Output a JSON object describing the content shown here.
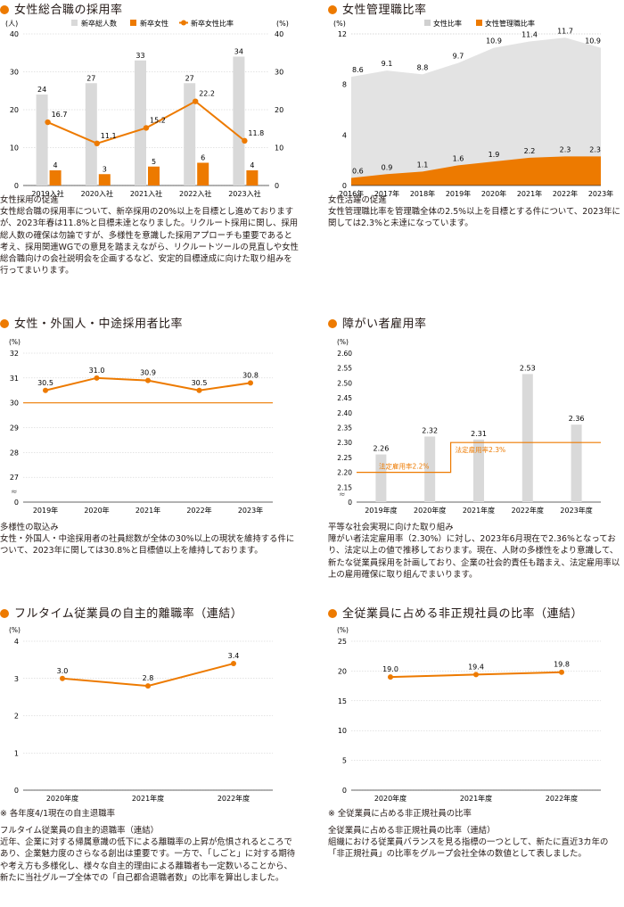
{
  "colors": {
    "accent": "#ed7a00",
    "gray_bar": "#d9d9d9",
    "axis": "#333333"
  },
  "panels": [
    {
      "id": "p1",
      "title": "女性総合職の採用率",
      "chart_data": {
        "type": "bar+line",
        "categories": [
          "2019入社",
          "2020入社",
          "2021入社",
          "2022入社",
          "2023入社"
        ],
        "left_unit": "(人)",
        "right_unit": "(%)",
        "ylim": [
          0,
          40
        ],
        "y_ticks": [
          0,
          10,
          20,
          30,
          40
        ],
        "series": [
          {
            "name": "新卒総人数",
            "type": "bar",
            "color": "#d9d9d9",
            "values": [
              24,
              27,
              33,
              27,
              34
            ]
          },
          {
            "name": "新卒女性",
            "type": "bar",
            "color": "#ed7a00",
            "values": [
              4,
              3,
              5,
              6,
              4
            ]
          },
          {
            "name": "新卒女性比率",
            "type": "line",
            "color": "#ed7a00",
            "values": [
              16.7,
              11.1,
              15.2,
              22.2,
              11.8
            ]
          }
        ]
      },
      "desc": "女性採用の促進\n女性総合職の採用率について、新卒採用の20%以上を目標とし進めておりますが、2023年春は11.8%と目標未達となりました。リクルート採用に関し、採用総人数の確保は勿論ですが、多様性を意識した採用アプローチも重要であると考え、採用関連WGでの意見を踏まえながら、リクルートツールの見直しや女性総合職向けの会社説明会を企画するなど、安定的目標達成に向けた取り組みを行ってまいります。"
    },
    {
      "id": "p2",
      "title": "女性管理職比率",
      "chart_data": {
        "type": "area",
        "categories": [
          "2016年",
          "2017年",
          "2018年",
          "2019年",
          "2020年",
          "2021年",
          "2022年",
          "2023年"
        ],
        "unit": "(%)",
        "ylim": [
          0,
          12
        ],
        "y_ticks": [
          0,
          4,
          8,
          12
        ],
        "series": [
          {
            "name": "女性比率",
            "color": "#e3e3e3",
            "values": [
              8.6,
              9.1,
              8.8,
              9.7,
              10.9,
              11.4,
              11.7,
              10.9
            ]
          },
          {
            "name": "女性管理職比率",
            "color": "#ed7a00",
            "values": [
              0.6,
              0.9,
              1.1,
              1.6,
              1.9,
              2.2,
              2.3,
              2.3
            ]
          }
        ]
      },
      "desc": "女性活躍の促進\n女性管理職比率を管理職全体の2.5%以上を目標とする件について、2023年に関しては2.3%と未達になっています。"
    },
    {
      "id": "p3",
      "title": "女性・外国人・中途採用者比率",
      "chart_data": {
        "type": "line",
        "categories": [
          "2019年",
          "2020年",
          "2021年",
          "2022年",
          "2023年"
        ],
        "unit": "(%)",
        "ylim": [
          26,
          32
        ],
        "y_ticks": [
          27,
          28,
          29,
          30,
          31,
          32
        ],
        "axis_break": true,
        "target": 30,
        "series": [
          {
            "color": "#ed7a00",
            "values": [
              30.5,
              31.0,
              30.9,
              30.5,
              30.8
            ]
          }
        ]
      },
      "desc": "多様性の取込み\n女性・外国人・中途採用者の社員総数が全体の30%以上の現状を維持する件について、2023年に関しては30.8%と目標値以上を維持しております。"
    },
    {
      "id": "p4",
      "title": "障がい者雇用率",
      "chart_data": {
        "type": "bar",
        "categories": [
          "2019年度",
          "2020年度",
          "2021年度",
          "2022年度",
          "2023年度"
        ],
        "unit": "(%)",
        "ylim": [
          2.1,
          2.6
        ],
        "y_ticks": [
          2.15,
          2.2,
          2.25,
          2.3,
          2.35,
          2.4,
          2.45,
          2.5,
          2.55,
          2.6
        ],
        "axis_break": true,
        "series": [
          {
            "color": "#d9d9d9",
            "values": [
              2.26,
              2.32,
              2.31,
              2.53,
              2.36
            ]
          }
        ],
        "legal_rate": [
          {
            "label": "法定雇用率2.2%",
            "value": 2.2,
            "from": 0,
            "to": 1
          },
          {
            "label": "法定雇用率2.3%",
            "value": 2.3,
            "from": 2,
            "to": 4
          }
        ]
      },
      "desc": "平等な社会実現に向けた取り組み\n障がい者法定雇用率（2.30%）に対し、2023年6月現在で2.36%となっており、法定以上の値で推移しております。現在、人財の多様性をより意識して、新たな従業員採用を計画しており、企業の社会的責任も踏まえ、法定雇用率以上の雇用確保に取り組んでまいります。"
    },
    {
      "id": "p5",
      "title": "フルタイム従業員の自主的離職率（連結）",
      "chart_data": {
        "type": "line",
        "categories": [
          "2020年度",
          "2021年度",
          "2022年度"
        ],
        "unit": "(%)",
        "ylim": [
          0,
          4
        ],
        "y_ticks": [
          0,
          1,
          2,
          3,
          4
        ],
        "series": [
          {
            "color": "#ed7a00",
            "values": [
              3.0,
              2.8,
              3.4
            ]
          }
        ]
      },
      "note": "※ 各年度4/1現在の自主退職率",
      "desc": "フルタイム従業員の自主的退職率（連結）\n近年、企業に対する帰属意識の低下による離職率の上昇が危惧されるところであり、企業魅力度のさらなる創出は重要です。一方で、「しごと」に対する期待や考え方も多様化し、様々な自主的理由による離職者も一定数いることから、新たに当社グループ全体での「自己都合退職者数」の比率を算出しました。"
    },
    {
      "id": "p6",
      "title": "全従業員に占める非正規社員の比率（連結）",
      "chart_data": {
        "type": "line",
        "categories": [
          "2020年度",
          "2021年度",
          "2022年度"
        ],
        "unit": "(%)",
        "ylim": [
          0,
          25
        ],
        "y_ticks": [
          0,
          5,
          10,
          15,
          20,
          25
        ],
        "series": [
          {
            "color": "#ed7a00",
            "values": [
              19.0,
              19.4,
              19.8
            ]
          }
        ]
      },
      "note": "※ 全従業員に占める非正規社員の比率",
      "desc": "全従業員に占める非正規社員の比率（連結）\n組織における従業員バランスを見る指標の一つとして、新たに直近3カ年の「非正規社員」の比率をグループ会社全体の数値として表しました。"
    }
  ]
}
